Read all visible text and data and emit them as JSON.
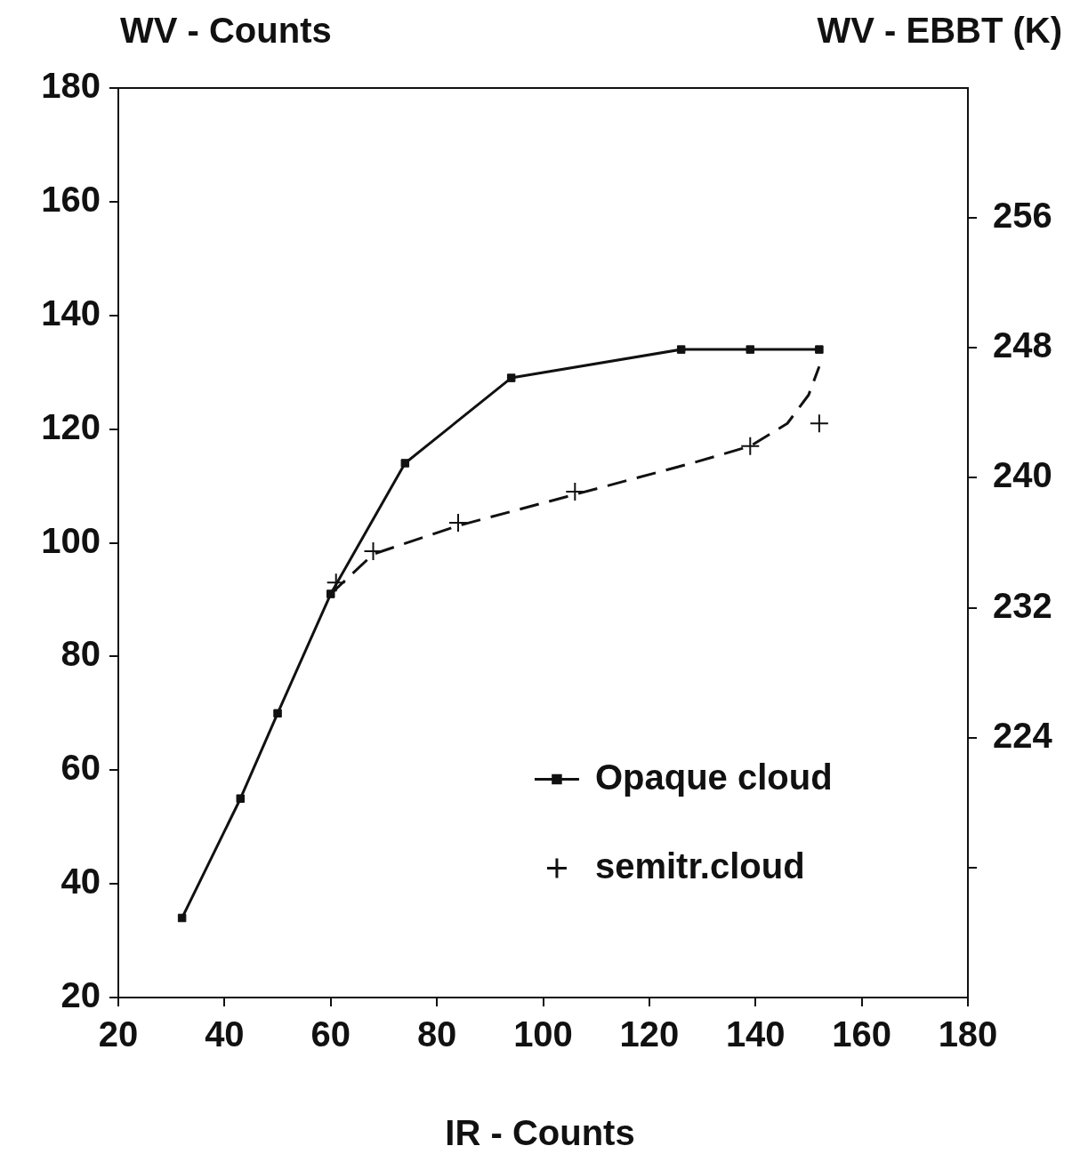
{
  "chart_data": {
    "type": "line",
    "xlabel": "IR - Counts",
    "ylabel": "WV - Counts",
    "y2label": "WV - EBBT (K)",
    "xlim": [
      20,
      180
    ],
    "xticks": [
      20,
      40,
      60,
      80,
      100,
      120,
      140,
      160,
      180
    ],
    "ylim": [
      20,
      180
    ],
    "yticks": [
      20,
      40,
      60,
      80,
      100,
      120,
      140,
      160,
      180
    ],
    "y2lim": [
      208,
      264
    ],
    "y2ticks": [
      {
        "value": 216,
        "label": null
      },
      224,
      232,
      240,
      248,
      256
    ],
    "legend": "bottom right",
    "series": [
      {
        "name": "Opaque cloud",
        "marker": "square",
        "line_style": "solid",
        "color": "#111111",
        "x": [
          32,
          43,
          50,
          60,
          74,
          94,
          126,
          139,
          152
        ],
        "values": [
          34,
          55,
          70,
          91,
          114,
          129,
          134,
          134,
          134
        ]
      },
      {
        "name": "semitr.cloud",
        "type": "scatter",
        "marker": "cross",
        "color": "#111111",
        "x": [
          61,
          68,
          84,
          106,
          139,
          152
        ],
        "values": [
          93,
          98.5,
          103.5,
          109,
          117,
          121
        ]
      },
      {
        "marker": "none",
        "line_style": "dashed",
        "color": "#111111",
        "x": [
          60,
          68,
          84,
          106,
          128,
          139,
          146,
          150,
          152
        ],
        "values": [
          91,
          98,
          103,
          108.5,
          114,
          117,
          121,
          126,
          131
        ]
      }
    ]
  }
}
